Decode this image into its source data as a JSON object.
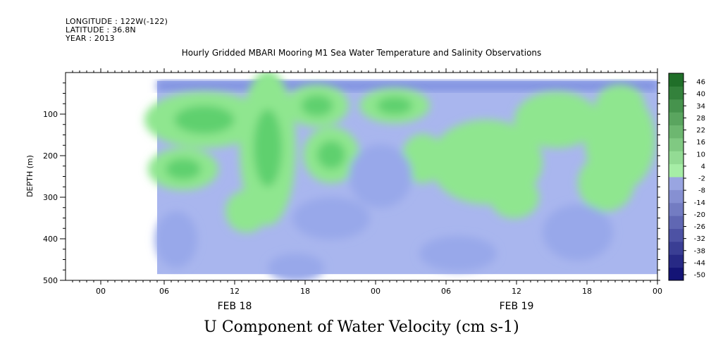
{
  "header": {
    "longitude": "LONGITUDE : 122W(-122)",
    "latitude": "LATITUDE : 36.8N",
    "year": "YEAR : 2013"
  },
  "chart_data": {
    "type": "heatmap",
    "title": "Hourly Gridded MBARI Mooring M1 Sea Water Temperature and Salinity Observations",
    "xlabel": "U Component of Water Velocity (cm s-1)",
    "ylabel": "DEPTH (m)",
    "x_unit": "hours since 00:00 FEB 18 2013",
    "xlim": [
      -5,
      79
    ],
    "ylim": [
      500,
      0
    ],
    "y_ticks": [
      100,
      200,
      300,
      400,
      500
    ],
    "x_ticks": [
      {
        "x": 0,
        "label": "00"
      },
      {
        "x": 9,
        "label": "06"
      },
      {
        "x": 19,
        "label": "12"
      },
      {
        "x": 29,
        "label": "18"
      },
      {
        "x": 39,
        "label": "00"
      },
      {
        "x": 49,
        "label": "06"
      },
      {
        "x": 59,
        "label": "12"
      },
      {
        "x": 69,
        "label": "18"
      },
      {
        "x": 79,
        "label": "00"
      }
    ],
    "date_labels": [
      {
        "x": 19,
        "label": "FEB 18"
      },
      {
        "x": 59,
        "label": "FEB 19"
      }
    ],
    "data_extent": {
      "x": [
        8,
        79
      ],
      "depth": [
        20,
        485
      ]
    },
    "colorbar": {
      "levels": [
        -50,
        -44,
        -38,
        -32,
        -26,
        -20,
        -14,
        -8,
        -2,
        4,
        10,
        16,
        22,
        28,
        34,
        40,
        46
      ],
      "labels": [
        "46",
        "40",
        "34",
        "28",
        "22",
        "16",
        "10",
        "4",
        "-2",
        "-8",
        "-14",
        "-20",
        "-26",
        "-32",
        "-38",
        "-44",
        "-50"
      ],
      "low_color": "#0a0a6e",
      "mid_low_color": "#a9b6ee",
      "mid_high_color": "#a9f0a9",
      "high_color": "#0a5a14"
    },
    "grid": false
  }
}
